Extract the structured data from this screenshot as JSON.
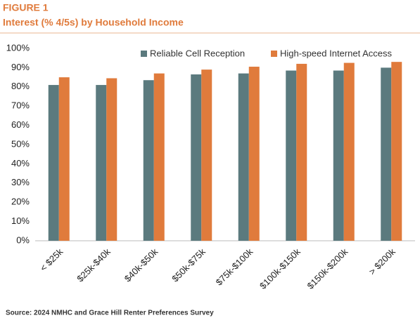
{
  "chart_data": {
    "type": "bar",
    "figure_label": "FIGURE 1",
    "title": "Interest (% 4/5s) by Household Income",
    "source": "Source: 2024 NMHC and Grace Hill Renter Preferences Survey",
    "categories": [
      "< $25k",
      "$25k-$40k",
      "$40k-$50k",
      "$50k-$75k",
      "$75k-$100k",
      "$100k-$150k",
      "$150k-$200k",
      "> $200k"
    ],
    "series": [
      {
        "name": "Reliable Cell Reception",
        "color": "#5b7a7e",
        "values": [
          81,
          81,
          83.5,
          86.5,
          87,
          88.5,
          88.5,
          90
        ]
      },
      {
        "name": "High-speed Internet Access",
        "color": "#e07b3c",
        "values": [
          85,
          84.5,
          87,
          89,
          90.5,
          92,
          92.5,
          93
        ]
      }
    ],
    "ylim": [
      0,
      100
    ],
    "yticks": [
      {
        "value": 0,
        "label": "0%"
      },
      {
        "value": 10,
        "label": "10%"
      },
      {
        "value": 20,
        "label": "20%"
      },
      {
        "value": 30,
        "label": "30%"
      },
      {
        "value": 40,
        "label": "40%"
      },
      {
        "value": 50,
        "label": "50%"
      },
      {
        "value": 60,
        "label": "60%"
      },
      {
        "value": 70,
        "label": "70%"
      },
      {
        "value": 80,
        "label": "80%"
      },
      {
        "value": 90,
        "label": "90%"
      },
      {
        "value": 100,
        "label": "100%"
      }
    ],
    "grid": false,
    "legend": "top"
  }
}
